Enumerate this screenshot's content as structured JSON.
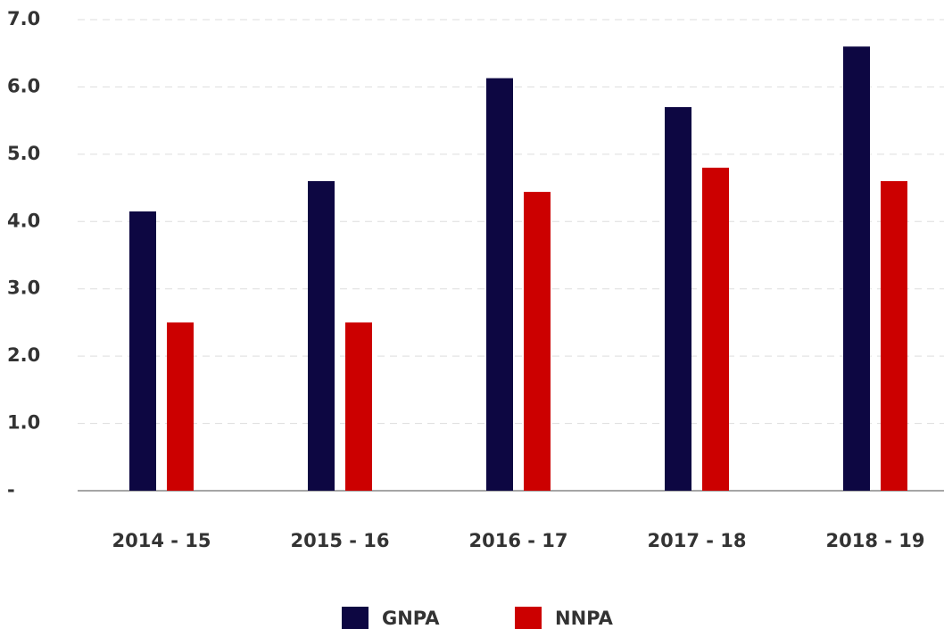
{
  "chart_data": {
    "type": "bar",
    "categories": [
      "2014 - 15",
      "2015 - 16",
      "2016 - 17",
      "2017 - 18",
      "2018 - 19"
    ],
    "series": [
      {
        "name": "GNPA",
        "color": "#0d0742",
        "values": [
          4.15,
          4.6,
          6.13,
          5.7,
          6.6
        ]
      },
      {
        "name": "NNPA",
        "color": "#cc0000",
        "values": [
          2.5,
          2.5,
          4.44,
          4.8,
          4.6
        ]
      }
    ],
    "ylim": [
      0,
      7
    ],
    "yticks": [
      {
        "value": 0,
        "label": "-"
      },
      {
        "value": 1,
        "label": "1.0"
      },
      {
        "value": 2,
        "label": "2.0"
      },
      {
        "value": 3,
        "label": "3.0"
      },
      {
        "value": 4,
        "label": "4.0"
      },
      {
        "value": 5,
        "label": "5.0"
      },
      {
        "value": 6,
        "label": "6.0"
      },
      {
        "value": 7,
        "label": "7.0"
      }
    ],
    "grid": true
  }
}
